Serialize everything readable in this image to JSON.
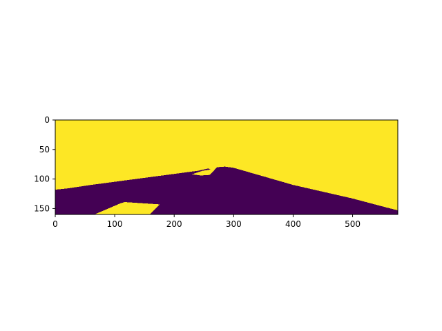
{
  "chart_data": {
    "type": "heatmap",
    "title": "",
    "xlabel": "",
    "ylabel": "",
    "image_shape": [
      160,
      576
    ],
    "xlim": [
      0,
      576
    ],
    "ylim": [
      160,
      0
    ],
    "x_ticks": [
      0,
      100,
      200,
      300,
      400,
      500
    ],
    "y_ticks": [
      0,
      50,
      100,
      150
    ],
    "x_tick_labels": [
      "0",
      "100",
      "200",
      "300",
      "400",
      "500"
    ],
    "y_tick_labels": [
      "0",
      "50",
      "100",
      "150"
    ],
    "colormap": "viridis",
    "values_present": [
      0,
      1
    ],
    "colors": {
      "low": "#440154",
      "high": "#fde725"
    },
    "regions": [
      {
        "value": 0,
        "description": "dark lower region",
        "boundary_data": [
          [
            0,
            118
          ],
          [
            20,
            116
          ],
          [
            60,
            110
          ],
          [
            120,
            102
          ],
          [
            180,
            94
          ],
          [
            240,
            86
          ],
          [
            258,
            82
          ],
          [
            261,
            84
          ],
          [
            248,
            86
          ],
          [
            230,
            92
          ],
          [
            245,
            94
          ],
          [
            260,
            93
          ],
          [
            272,
            80
          ],
          [
            285,
            79
          ],
          [
            300,
            81
          ],
          [
            400,
            110
          ],
          [
            500,
            133
          ],
          [
            560,
            149
          ],
          [
            576,
            153
          ],
          [
            576,
            160
          ],
          [
            0,
            160
          ]
        ]
      },
      {
        "value": 1,
        "description": "bright patch at lower left",
        "boundary_data": [
          [
            66,
            160
          ],
          [
            110,
            141
          ],
          [
            117,
            139
          ],
          [
            176,
            143
          ],
          [
            159,
            160
          ]
        ]
      }
    ]
  }
}
